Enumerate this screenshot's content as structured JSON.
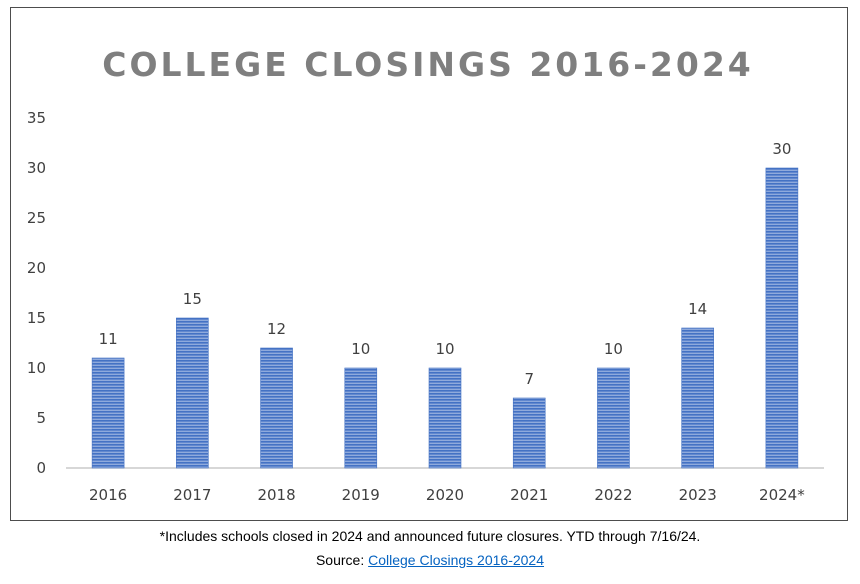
{
  "chart_data": {
    "type": "bar",
    "title": "COLLEGE CLOSINGS 2016-2024",
    "categories": [
      "2016",
      "2017",
      "2018",
      "2019",
      "2020",
      "2021",
      "2022",
      "2023",
      "2024*"
    ],
    "values": [
      11,
      15,
      12,
      10,
      10,
      7,
      10,
      14,
      30
    ],
    "yticks": [
      "0",
      "5",
      "10",
      "15",
      "20",
      "25",
      "30",
      "35"
    ],
    "ylim": [
      0,
      35
    ],
    "xlabel": "",
    "ylabel": "",
    "grid": false,
    "legend": "none",
    "bar_color": "#4472c4"
  },
  "footnote": {
    "note": "*Includes schools closed in 2024 and announced future closures. YTD through 7/16/24.",
    "source_prefix": "Source: ",
    "source_link": "College Closings 2016-2024"
  }
}
